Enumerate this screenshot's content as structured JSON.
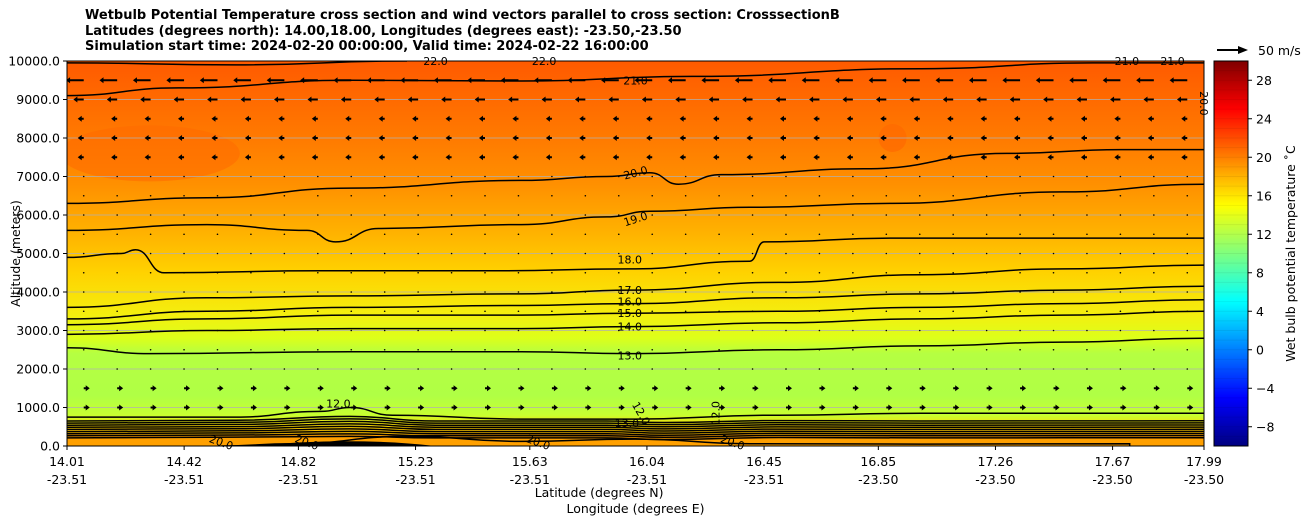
{
  "chart_data": {
    "type": "heatmap",
    "title_lines": [
      "Wetbulb Potential Temperature cross section and wind vectors parallel to cross section: CrosssectionB",
      "Latitudes (degrees north): 14.00,18.00, Longitudes (degrees east): -23.50,-23.50",
      "Simulation start time: 2024-02-20 00:00:00, Valid time: 2024-02-22 16:00:00"
    ],
    "ylabel": "Altitude (meters)",
    "xlabel_lines": [
      "Latitude (degrees N)",
      "Longitude (degrees E)"
    ],
    "ylim": [
      0,
      10000
    ],
    "y_ticks": [
      0,
      1000,
      2000,
      3000,
      4000,
      5000,
      6000,
      7000,
      8000,
      9000,
      10000
    ],
    "y_tick_labels": [
      "0.0",
      "1000.0",
      "2000.0",
      "3000.0",
      "4000.0",
      "5000.0",
      "6000.0",
      "7000.0",
      "8000.0",
      "9000.0",
      "10000.0"
    ],
    "xlim": [
      14.01,
      17.99
    ],
    "x_ticks": [
      {
        "lat": "14.01",
        "lon": "-23.51"
      },
      {
        "lat": "14.42",
        "lon": "-23.51"
      },
      {
        "lat": "14.82",
        "lon": "-23.51"
      },
      {
        "lat": "15.23",
        "lon": "-23.51"
      },
      {
        "lat": "15.63",
        "lon": "-23.51"
      },
      {
        "lat": "16.04",
        "lon": "-23.51"
      },
      {
        "lat": "16.45",
        "lon": "-23.51"
      },
      {
        "lat": "16.85",
        "lon": "-23.50"
      },
      {
        "lat": "17.26",
        "lon": "-23.50"
      },
      {
        "lat": "17.67",
        "lon": "-23.50"
      },
      {
        "lat": "17.99",
        "lon": "-23.50"
      }
    ],
    "grid": "horizontal",
    "colorbar": {
      "label": "Wet bulb potential temperature ˚C",
      "range": [
        -10,
        30
      ],
      "ticks": [
        "28",
        "24",
        "20",
        "16",
        "12",
        "8",
        "4",
        "0",
        "−4",
        "−8"
      ],
      "tick_values": [
        28,
        24,
        20,
        16,
        12,
        8,
        4,
        0,
        -4,
        -8
      ],
      "colormap": "jet",
      "colors": [
        "#00007f",
        "#0000ff",
        "#007fff",
        "#00ffff",
        "#7fff7f",
        "#ffff00",
        "#ff7f00",
        "#ff0000",
        "#7f0000"
      ]
    },
    "quiver_key": "50 m/s",
    "contour_labels": [
      {
        "text": "22.0",
        "alt": 10000,
        "lat": 15.3
      },
      {
        "text": "22.0",
        "alt": 10000,
        "lat": 15.68
      },
      {
        "text": "21.0",
        "alt": 9500,
        "lat": 16.0
      },
      {
        "text": "21.0",
        "alt": 10000,
        "lat": 17.72
      },
      {
        "text": "21.0",
        "alt": 10000,
        "lat": 17.88
      },
      {
        "text": "20.0",
        "alt": 8900,
        "lat": 17.99
      },
      {
        "text": "20.0",
        "alt": 7100,
        "lat": 16.0
      },
      {
        "text": "19.0",
        "alt": 5900,
        "lat": 16.0
      },
      {
        "text": "18.0",
        "alt": 4850,
        "lat": 15.98
      },
      {
        "text": "17.0",
        "alt": 4050,
        "lat": 15.98
      },
      {
        "text": "16.0",
        "alt": 3750,
        "lat": 15.98
      },
      {
        "text": "15.0",
        "alt": 3450,
        "lat": 15.98
      },
      {
        "text": "14.0",
        "alt": 3100,
        "lat": 15.98
      },
      {
        "text": "13.0",
        "alt": 2350,
        "lat": 15.98
      },
      {
        "text": "12.0",
        "alt": 1100,
        "lat": 14.96
      },
      {
        "text": "12.0",
        "alt": 850,
        "lat": 16.02
      },
      {
        "text": "12.0",
        "alt": 850,
        "lat": 16.28
      },
      {
        "text": "13.0",
        "alt": 600,
        "lat": 15.97
      },
      {
        "text": "20.0",
        "alt": 100,
        "lat": 14.55
      },
      {
        "text": "20.0",
        "alt": 100,
        "lat": 14.85
      },
      {
        "text": "20.0",
        "alt": 100,
        "lat": 15.66
      },
      {
        "text": "20.0",
        "alt": 100,
        "lat": 16.34
      }
    ],
    "contours": [
      {
        "level": 21,
        "points": [
          [
            14.01,
            9100
          ],
          [
            14.4,
            9300
          ],
          [
            15.0,
            9500
          ],
          [
            15.6,
            9480
          ],
          [
            16.2,
            9600
          ],
          [
            17.0,
            9800
          ],
          [
            17.6,
            9950
          ],
          [
            17.99,
            9950
          ]
        ]
      },
      {
        "level": 20,
        "points": [
          [
            14.01,
            6300
          ],
          [
            14.5,
            6450
          ],
          [
            15.0,
            6700
          ],
          [
            15.6,
            6900
          ],
          [
            15.9,
            7000
          ],
          [
            16.05,
            7100
          ],
          [
            16.15,
            6800
          ],
          [
            16.3,
            7050
          ],
          [
            16.8,
            7200
          ],
          [
            17.3,
            7600
          ],
          [
            17.7,
            7700
          ],
          [
            17.99,
            7700
          ]
        ]
      },
      {
        "level": 19,
        "points": [
          [
            14.01,
            5600
          ],
          [
            14.5,
            5750
          ],
          [
            14.85,
            5600
          ],
          [
            14.95,
            5300
          ],
          [
            15.1,
            5650
          ],
          [
            15.6,
            5750
          ],
          [
            15.9,
            5950
          ],
          [
            16.05,
            6100
          ],
          [
            16.4,
            6200
          ],
          [
            16.9,
            6300
          ],
          [
            17.5,
            6600
          ],
          [
            17.99,
            6800
          ]
        ]
      },
      {
        "level": 18,
        "points": [
          [
            14.01,
            4900
          ],
          [
            14.2,
            5000
          ],
          [
            14.25,
            5100
          ],
          [
            14.35,
            4500
          ],
          [
            14.9,
            4550
          ],
          [
            15.5,
            4550
          ],
          [
            15.98,
            4600
          ],
          [
            16.4,
            4800
          ],
          [
            16.45,
            5300
          ],
          [
            16.9,
            5400
          ],
          [
            17.5,
            5400
          ],
          [
            17.99,
            5400
          ]
        ]
      },
      {
        "level": 17,
        "points": [
          [
            14.01,
            3600
          ],
          [
            14.5,
            3850
          ],
          [
            15.0,
            3900
          ],
          [
            15.6,
            3950
          ],
          [
            15.98,
            4050
          ],
          [
            16.5,
            4250
          ],
          [
            17.0,
            4450
          ],
          [
            17.5,
            4600
          ],
          [
            17.99,
            4700
          ]
        ]
      },
      {
        "level": 16,
        "points": [
          [
            14.01,
            3300
          ],
          [
            14.5,
            3500
          ],
          [
            15.0,
            3600
          ],
          [
            15.6,
            3650
          ],
          [
            15.98,
            3700
          ],
          [
            16.5,
            3850
          ],
          [
            17.0,
            3950
          ],
          [
            17.5,
            4050
          ],
          [
            17.99,
            4150
          ]
        ]
      },
      {
        "level": 15,
        "points": [
          [
            14.01,
            3150
          ],
          [
            14.5,
            3300
          ],
          [
            15.0,
            3400
          ],
          [
            15.6,
            3400
          ],
          [
            15.98,
            3450
          ],
          [
            16.5,
            3500
          ],
          [
            17.0,
            3600
          ],
          [
            17.5,
            3700
          ],
          [
            17.99,
            3800
          ]
        ]
      },
      {
        "level": 14,
        "points": [
          [
            14.01,
            2900
          ],
          [
            14.5,
            3000
          ],
          [
            15.0,
            3050
          ],
          [
            15.6,
            3050
          ],
          [
            15.98,
            3100
          ],
          [
            16.5,
            3200
          ],
          [
            17.0,
            3300
          ],
          [
            17.5,
            3400
          ],
          [
            17.99,
            3500
          ]
        ]
      },
      {
        "level": 13,
        "points": [
          [
            14.01,
            2550
          ],
          [
            14.3,
            2400
          ],
          [
            15.0,
            2450
          ],
          [
            15.6,
            2450
          ],
          [
            15.98,
            2400
          ],
          [
            16.5,
            2500
          ],
          [
            17.0,
            2600
          ],
          [
            17.5,
            2700
          ],
          [
            17.99,
            2800
          ]
        ]
      },
      {
        "level": 12,
        "points": [
          [
            14.01,
            750
          ],
          [
            14.6,
            750
          ],
          [
            14.9,
            900
          ],
          [
            15.0,
            1000
          ],
          [
            15.15,
            800
          ],
          [
            15.6,
            700
          ],
          [
            15.98,
            700
          ],
          [
            16.5,
            800
          ],
          [
            17.0,
            850
          ],
          [
            17.99,
            850
          ]
        ]
      }
    ]
  }
}
